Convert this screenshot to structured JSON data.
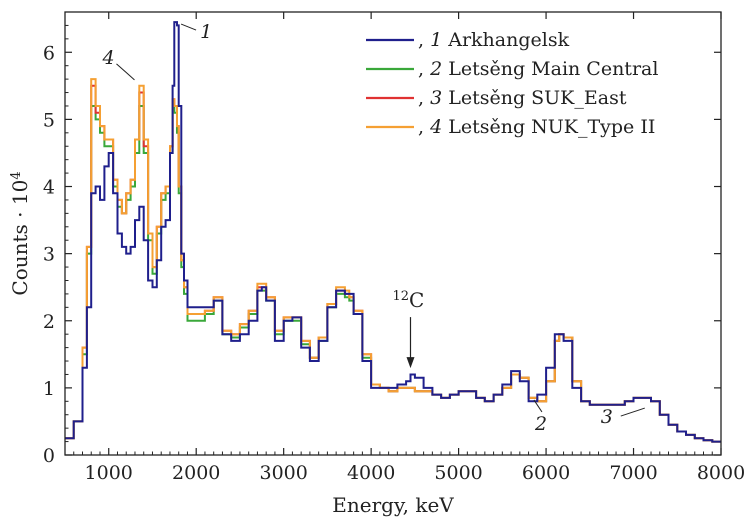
{
  "chart_data": {
    "type": "line",
    "step": true,
    "xlabel": "Energy, keV",
    "ylabel": "Counts · 10",
    "ylabel_exponent": "4",
    "xlim": [
      500,
      8000
    ],
    "ylim": [
      0,
      6.6
    ],
    "xticks": [
      1000,
      2000,
      3000,
      4000,
      5000,
      6000,
      7000,
      8000
    ],
    "yticks": [
      0,
      1,
      2,
      3,
      4,
      5,
      6
    ],
    "grid": false,
    "legend_position": "top-right",
    "colors": {
      "series1": "#1f1f8c",
      "series2": "#3aa83a",
      "series3": "#e03232",
      "series4": "#f5a033"
    },
    "series": [
      {
        "id": "1",
        "name": "Arkhangelsk",
        "legend_prefix": ", ",
        "legend_number": "1",
        "x": [
          500,
          600,
          700,
          750,
          800,
          850,
          900,
          950,
          1000,
          1050,
          1100,
          1150,
          1200,
          1250,
          1300,
          1350,
          1400,
          1450,
          1500,
          1550,
          1600,
          1650,
          1700,
          1730,
          1750,
          1780,
          1800,
          1830,
          1860,
          1900,
          2000,
          2100,
          2200,
          2300,
          2400,
          2500,
          2600,
          2700,
          2750,
          2800,
          2900,
          3000,
          3100,
          3200,
          3300,
          3400,
          3500,
          3600,
          3700,
          3750,
          3800,
          3900,
          4000,
          4100,
          4200,
          4300,
          4400,
          4450,
          4500,
          4600,
          4700,
          4800,
          4900,
          5000,
          5100,
          5200,
          5300,
          5400,
          5500,
          5600,
          5650,
          5700,
          5800,
          5900,
          6000,
          6100,
          6150,
          6200,
          6300,
          6400,
          6500,
          6600,
          6700,
          6800,
          6900,
          7000,
          7100,
          7200,
          7300,
          7400,
          7500,
          7600,
          7700,
          7800,
          7900,
          8000
        ],
        "y": [
          0.25,
          0.5,
          1.3,
          2.2,
          3.9,
          4.0,
          3.8,
          4.3,
          4.5,
          3.9,
          3.3,
          3.1,
          3.0,
          3.1,
          3.5,
          3.7,
          3.2,
          2.6,
          2.5,
          2.9,
          3.4,
          3.5,
          4.5,
          5.5,
          6.45,
          6.4,
          5.2,
          3.0,
          2.6,
          2.2,
          2.2,
          2.2,
          2.3,
          1.8,
          1.7,
          1.8,
          2.0,
          2.45,
          2.5,
          2.3,
          1.7,
          2.0,
          2.05,
          1.6,
          1.4,
          1.7,
          2.2,
          2.45,
          2.4,
          2.4,
          2.1,
          1.4,
          1.0,
          1.0,
          1.0,
          1.05,
          1.1,
          1.2,
          1.15,
          1.0,
          0.9,
          0.85,
          0.9,
          0.95,
          0.95,
          0.85,
          0.8,
          0.9,
          1.05,
          1.25,
          1.25,
          1.1,
          0.8,
          0.9,
          1.3,
          1.8,
          1.8,
          1.7,
          1.0,
          0.8,
          0.75,
          0.75,
          0.75,
          0.75,
          0.8,
          0.85,
          0.85,
          0.8,
          0.6,
          0.45,
          0.35,
          0.3,
          0.25,
          0.22,
          0.2,
          0.2
        ]
      },
      {
        "id": "2",
        "name": "Letsěng Main Central",
        "legend_prefix": ", ",
        "legend_number": "2",
        "x": [
          500,
          600,
          700,
          750,
          800,
          850,
          900,
          950,
          1000,
          1050,
          1100,
          1150,
          1200,
          1250,
          1300,
          1350,
          1400,
          1450,
          1500,
          1550,
          1600,
          1650,
          1700,
          1730,
          1750,
          1780,
          1800,
          1830,
          1860,
          1900,
          2000,
          2100,
          2200,
          2300,
          2400,
          2500,
          2600,
          2700,
          2750,
          2800,
          2900,
          3000,
          3100,
          3200,
          3300,
          3400,
          3500,
          3600,
          3700,
          3750,
          3800,
          3900,
          4000,
          4100,
          4200,
          4300,
          4400,
          4450,
          4500,
          4600,
          4700,
          4800,
          4900,
          5000,
          5100,
          5200,
          5300,
          5400,
          5500,
          5600,
          5650,
          5700,
          5800,
          5900,
          6000,
          6100,
          6150,
          6200,
          6300,
          6400,
          6500,
          6600,
          6700,
          6800,
          6900,
          7000,
          7100,
          7200,
          7300,
          7400,
          7500,
          7600,
          7700,
          7800,
          7900,
          8000
        ],
        "y": [
          0.25,
          0.5,
          1.5,
          3.0,
          5.2,
          5.0,
          4.8,
          4.6,
          4.6,
          4.0,
          3.7,
          3.6,
          3.8,
          4.0,
          4.5,
          5.2,
          4.5,
          3.2,
          2.7,
          3.3,
          3.8,
          3.9,
          4.5,
          5.2,
          5.1,
          4.8,
          3.9,
          2.8,
          2.4,
          2.0,
          2.0,
          2.1,
          2.3,
          1.8,
          1.75,
          1.9,
          2.1,
          2.45,
          2.45,
          2.3,
          1.8,
          2.0,
          2.0,
          1.65,
          1.45,
          1.7,
          2.2,
          2.4,
          2.35,
          2.3,
          2.1,
          1.45,
          1.05,
          1.0,
          0.95,
          1.0,
          1.0,
          1.0,
          0.95,
          0.95,
          0.9,
          0.85,
          0.9,
          0.95,
          0.95,
          0.85,
          0.8,
          0.9,
          1.0,
          1.2,
          1.2,
          1.15,
          0.85,
          0.8,
          1.1,
          1.7,
          1.8,
          1.75,
          1.1,
          0.8,
          0.75,
          0.75,
          0.75,
          0.75,
          0.8,
          0.85,
          0.85,
          0.8,
          0.6,
          0.45,
          0.35,
          0.3,
          0.25,
          0.22,
          0.2,
          0.2
        ]
      },
      {
        "id": "3",
        "name": "Letsěng SUK_East",
        "legend_prefix": ", ",
        "legend_number": "3",
        "x": [
          500,
          600,
          700,
          750,
          800,
          850,
          900,
          950,
          1000,
          1050,
          1100,
          1150,
          1200,
          1250,
          1300,
          1350,
          1400,
          1450,
          1500,
          1550,
          1600,
          1650,
          1700,
          1730,
          1750,
          1780,
          1800,
          1830,
          1860,
          1900,
          2000,
          2100,
          2200,
          2300,
          2400,
          2500,
          2600,
          2700,
          2750,
          2800,
          2900,
          3000,
          3100,
          3200,
          3300,
          3400,
          3500,
          3600,
          3700,
          3750,
          3800,
          3900,
          4000,
          4100,
          4200,
          4300,
          4400,
          4450,
          4500,
          4600,
          4700,
          4800,
          4900,
          5000,
          5100,
          5200,
          5300,
          5400,
          5500,
          5600,
          5650,
          5700,
          5800,
          5900,
          6000,
          6100,
          6150,
          6200,
          6300,
          6400,
          6500,
          6600,
          6700,
          6800,
          6900,
          7000,
          7100,
          7200,
          7300,
          7400,
          7500,
          7600,
          7700,
          7800,
          7900,
          8000
        ],
        "y": [
          0.25,
          0.5,
          1.6,
          3.1,
          5.5,
          5.1,
          4.9,
          4.7,
          4.7,
          4.1,
          3.8,
          3.6,
          3.9,
          4.1,
          4.7,
          5.4,
          4.6,
          3.3,
          2.8,
          3.4,
          3.9,
          4.0,
          4.6,
          5.3,
          5.2,
          4.9,
          4.0,
          2.9,
          2.5,
          2.1,
          2.1,
          2.15,
          2.35,
          1.85,
          1.8,
          1.95,
          2.15,
          2.5,
          2.5,
          2.35,
          1.85,
          2.05,
          2.05,
          1.7,
          1.45,
          1.75,
          2.25,
          2.45,
          2.4,
          2.35,
          2.15,
          1.5,
          1.05,
          1.0,
          0.95,
          1.0,
          1.0,
          1.0,
          0.95,
          0.95,
          0.9,
          0.85,
          0.9,
          0.95,
          0.95,
          0.85,
          0.8,
          0.9,
          1.0,
          1.2,
          1.2,
          1.15,
          0.85,
          0.8,
          1.1,
          1.7,
          1.8,
          1.75,
          1.1,
          0.8,
          0.75,
          0.75,
          0.75,
          0.75,
          0.8,
          0.85,
          0.85,
          0.8,
          0.6,
          0.45,
          0.35,
          0.3,
          0.25,
          0.22,
          0.2,
          0.2
        ]
      },
      {
        "id": "4",
        "name": "Letsěng NUK_Type II",
        "legend_prefix": ", ",
        "legend_number": "4",
        "x": [
          500,
          600,
          700,
          750,
          800,
          850,
          900,
          950,
          1000,
          1050,
          1100,
          1150,
          1200,
          1250,
          1300,
          1350,
          1400,
          1450,
          1500,
          1550,
          1600,
          1650,
          1700,
          1730,
          1750,
          1780,
          1800,
          1830,
          1860,
          1900,
          2000,
          2100,
          2200,
          2300,
          2400,
          2500,
          2600,
          2700,
          2750,
          2800,
          2900,
          3000,
          3100,
          3200,
          3300,
          3400,
          3500,
          3600,
          3700,
          3750,
          3800,
          3900,
          4000,
          4100,
          4200,
          4300,
          4400,
          4450,
          4500,
          4600,
          4700,
          4800,
          4900,
          5000,
          5100,
          5200,
          5300,
          5400,
          5500,
          5600,
          5650,
          5700,
          5800,
          5900,
          6000,
          6100,
          6150,
          6200,
          6300,
          6400,
          6500,
          6600,
          6700,
          6800,
          6900,
          7000,
          7100,
          7200,
          7300,
          7400,
          7500,
          7600,
          7700,
          7800,
          7900,
          8000
        ],
        "y": [
          0.25,
          0.5,
          1.6,
          3.1,
          5.6,
          5.2,
          4.9,
          4.7,
          4.7,
          4.1,
          3.8,
          3.6,
          3.9,
          4.1,
          4.7,
          5.5,
          4.7,
          3.3,
          2.8,
          3.4,
          3.9,
          4.0,
          4.6,
          5.3,
          5.2,
          4.9,
          4.0,
          2.9,
          2.5,
          2.1,
          2.1,
          2.15,
          2.35,
          1.85,
          1.8,
          1.95,
          2.15,
          2.55,
          2.55,
          2.35,
          1.85,
          2.05,
          2.05,
          1.7,
          1.45,
          1.75,
          2.25,
          2.5,
          2.45,
          2.35,
          2.15,
          1.5,
          1.05,
          1.0,
          0.95,
          1.0,
          1.0,
          1.0,
          0.95,
          0.95,
          0.9,
          0.85,
          0.9,
          0.95,
          0.95,
          0.85,
          0.8,
          0.9,
          1.0,
          1.2,
          1.2,
          1.15,
          0.85,
          0.8,
          1.1,
          1.7,
          1.8,
          1.75,
          1.1,
          0.8,
          0.75,
          0.75,
          0.75,
          0.75,
          0.8,
          0.85,
          0.85,
          0.8,
          0.6,
          0.45,
          0.35,
          0.3,
          0.25,
          0.22,
          0.2,
          0.2
        ]
      }
    ],
    "annotations": [
      {
        "id": "label-1",
        "text": "1",
        "x": 1770,
        "y": 6.45
      },
      {
        "id": "label-4",
        "text": "4",
        "x": 1340,
        "y": 5.5
      },
      {
        "id": "label-2",
        "text": "2",
        "x": 5930,
        "y": 0.85
      },
      {
        "id": "label-3",
        "text": "3",
        "x": 6900,
        "y": 0.55
      },
      {
        "id": "label-12c",
        "text": "C",
        "superscript": "12",
        "x": 4450,
        "y": 1.25
      }
    ]
  }
}
